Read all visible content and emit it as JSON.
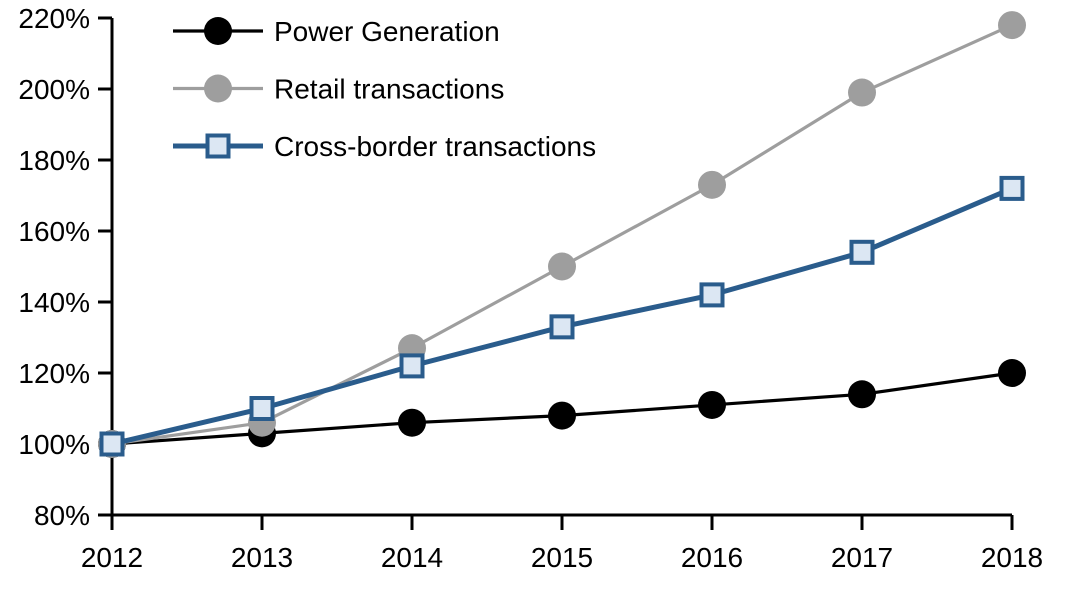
{
  "chart_data": {
    "type": "line",
    "title": "",
    "xlabel": "",
    "ylabel": "",
    "categories": [
      "2012",
      "2013",
      "2014",
      "2015",
      "2016",
      "2017",
      "2018"
    ],
    "y_axis": {
      "min": 80,
      "max": 220,
      "step": 20,
      "unit": "%",
      "tick_labels": [
        "80%",
        "100%",
        "120%",
        "140%",
        "160%",
        "180%",
        "200%",
        "220%"
      ]
    },
    "grid": false,
    "legend_position": "top-left-inside",
    "series": [
      {
        "name": "Power Generation",
        "marker": "circle",
        "line_color": "#000000",
        "marker_fill": "#000000",
        "marker_stroke": "#000000",
        "values": [
          100,
          103,
          106,
          108,
          111,
          114,
          120
        ]
      },
      {
        "name": "Retail transactions",
        "marker": "circle",
        "line_color": "#9E9E9E",
        "marker_fill": "#9E9E9E",
        "marker_stroke": "#9E9E9E",
        "values": [
          100,
          106,
          127,
          150,
          173,
          199,
          218
        ]
      },
      {
        "name": "Cross-border transactions",
        "marker": "square",
        "line_color": "#2A5C8C",
        "marker_fill": "#DCE7F3",
        "marker_stroke": "#2A5C8C",
        "values": [
          100,
          110,
          122,
          133,
          142,
          154,
          172
        ]
      }
    ],
    "axis_color": "#000000",
    "text_color": "#000000"
  }
}
